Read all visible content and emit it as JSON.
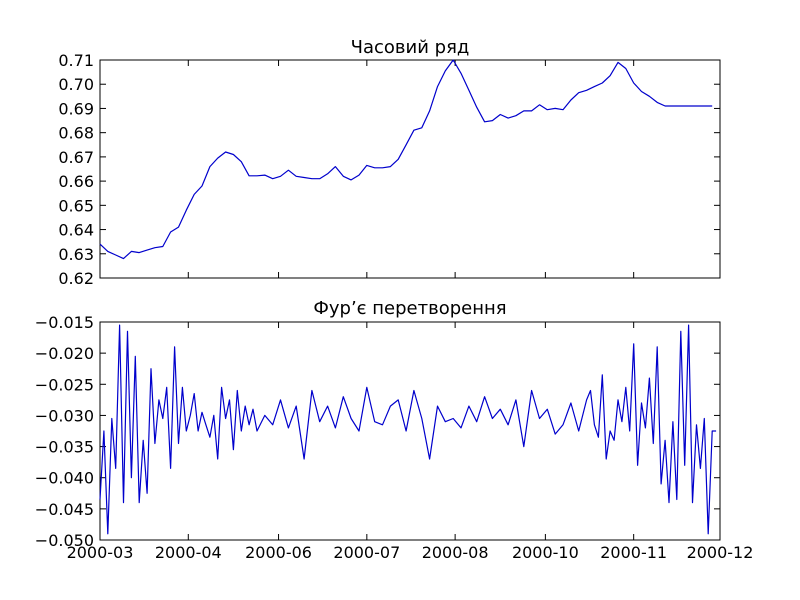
{
  "colors": {
    "series": "#0000cc",
    "axis": "#000000",
    "background": "#ffffff"
  },
  "x_ticks": [
    "2000-03",
    "2000-04",
    "2000-06",
    "2000-07",
    "2000-08",
    "2000-10",
    "2000-11",
    "2000-12"
  ],
  "chart_data": [
    {
      "type": "line",
      "title": "Часовий ряд",
      "xlim": [
        0,
        316
      ],
      "ylim": [
        0.62,
        0.71
      ],
      "y_ticks": [
        "0.62",
        "0.63",
        "0.64",
        "0.65",
        "0.66",
        "0.67",
        "0.68",
        "0.69",
        "0.70",
        "0.71"
      ],
      "grid": false,
      "x_tick_positions": [
        0,
        45,
        91,
        136,
        181,
        227,
        272,
        316
      ],
      "series": [
        {
          "x": [
            0,
            4,
            8,
            12,
            16,
            20,
            24,
            28,
            32,
            36,
            40,
            44,
            48,
            52,
            56,
            60,
            64,
            68,
            72,
            76,
            80,
            84,
            88,
            92,
            96,
            100,
            104,
            108,
            112,
            116,
            120,
            124,
            128,
            132,
            136,
            140,
            144,
            148,
            152,
            156,
            160,
            164,
            168,
            172,
            176,
            180,
            184,
            188,
            192,
            196,
            200,
            204,
            208,
            212,
            216,
            220,
            224,
            228,
            232,
            236,
            240,
            244,
            248,
            252,
            256,
            260,
            264,
            268,
            272,
            276,
            280,
            284,
            288,
            292,
            296,
            300,
            304,
            308,
            312
          ],
          "values": [
            0.634,
            0.631,
            0.6295,
            0.628,
            0.631,
            0.6305,
            0.6315,
            0.6325,
            0.633,
            0.639,
            0.641,
            0.648,
            0.6545,
            0.658,
            0.666,
            0.6695,
            0.672,
            0.671,
            0.668,
            0.6622,
            0.6622,
            0.6625,
            0.661,
            0.662,
            0.6645,
            0.662,
            0.6615,
            0.661,
            0.661,
            0.663,
            0.666,
            0.662,
            0.6605,
            0.6625,
            0.6665,
            0.6655,
            0.6655,
            0.666,
            0.669,
            0.675,
            0.681,
            0.682,
            0.689,
            0.699,
            0.7055,
            0.71,
            0.7045,
            0.6975,
            0.6905,
            0.6845,
            0.685,
            0.6875,
            0.686,
            0.687,
            0.689,
            0.689,
            0.6915,
            0.6895,
            0.69,
            0.6895,
            0.6935,
            0.6965,
            0.6975,
            0.699,
            0.7005,
            0.7035,
            0.709,
            0.7065,
            0.7005,
            0.697,
            0.695,
            0.6925,
            0.691,
            0.691,
            0.691,
            0.691,
            0.691,
            0.691,
            0.691
          ]
        }
      ]
    },
    {
      "type": "line",
      "title": "Фур’є перетворення",
      "xlim": [
        0,
        316
      ],
      "ylim": [
        -0.05,
        -0.015
      ],
      "y_ticks": [
        "−0.050",
        "−0.045",
        "−0.040",
        "−0.035",
        "−0.030",
        "−0.025",
        "−0.020",
        "−0.015"
      ],
      "grid": false,
      "x_tick_positions": [
        0,
        45,
        91,
        136,
        181,
        227,
        272,
        316
      ],
      "series": [
        {
          "x": [
            0,
            2,
            4,
            6,
            8,
            10,
            12,
            14,
            16,
            18,
            20,
            22,
            24,
            26,
            28,
            30,
            32,
            34,
            36,
            38,
            40,
            42,
            44,
            46,
            48,
            50,
            52,
            54,
            56,
            58,
            60,
            62,
            64,
            66,
            68,
            70,
            72,
            74,
            76,
            78,
            80,
            84,
            88,
            92,
            96,
            100,
            104,
            108,
            112,
            116,
            120,
            124,
            128,
            132,
            136,
            140,
            144,
            148,
            152,
            156,
            160,
            164,
            168,
            172,
            176,
            180,
            184,
            188,
            192,
            196,
            200,
            204,
            208,
            212,
            216,
            220,
            224,
            228,
            232,
            236,
            240,
            244,
            248,
            250,
            252,
            254,
            256,
            258,
            260,
            262,
            264,
            266,
            268,
            270,
            272,
            274,
            276,
            278,
            280,
            282,
            284,
            286,
            288,
            290,
            292,
            294,
            296,
            298,
            300,
            302,
            304,
            306,
            308,
            310,
            312,
            314
          ],
          "values": [
            -0.0435,
            -0.0325,
            -0.049,
            -0.0305,
            -0.0385,
            -0.0155,
            -0.044,
            -0.0165,
            -0.04,
            -0.0205,
            -0.044,
            -0.034,
            -0.0425,
            -0.0225,
            -0.0345,
            -0.0275,
            -0.0305,
            -0.0255,
            -0.0385,
            -0.019,
            -0.0345,
            -0.0255,
            -0.0325,
            -0.03,
            -0.0265,
            -0.0325,
            -0.0295,
            -0.0315,
            -0.0335,
            -0.03,
            -0.037,
            -0.0255,
            -0.0305,
            -0.0275,
            -0.0355,
            -0.026,
            -0.0325,
            -0.0285,
            -0.0315,
            -0.029,
            -0.0325,
            -0.03,
            -0.0315,
            -0.0275,
            -0.032,
            -0.0285,
            -0.037,
            -0.026,
            -0.031,
            -0.0285,
            -0.032,
            -0.027,
            -0.0305,
            -0.0325,
            -0.0255,
            -0.031,
            -0.0315,
            -0.0285,
            -0.0275,
            -0.0325,
            -0.026,
            -0.0305,
            -0.037,
            -0.0285,
            -0.031,
            -0.0305,
            -0.032,
            -0.0285,
            -0.031,
            -0.027,
            -0.0305,
            -0.029,
            -0.0315,
            -0.0275,
            -0.035,
            -0.026,
            -0.0305,
            -0.029,
            -0.033,
            -0.0315,
            -0.028,
            -0.0325,
            -0.0275,
            -0.026,
            -0.0315,
            -0.0335,
            -0.0235,
            -0.037,
            -0.0325,
            -0.034,
            -0.0275,
            -0.031,
            -0.0255,
            -0.0325,
            -0.0185,
            -0.038,
            -0.028,
            -0.032,
            -0.024,
            -0.0345,
            -0.019,
            -0.041,
            -0.034,
            -0.044,
            -0.031,
            -0.0435,
            -0.0165,
            -0.038,
            -0.0155,
            -0.044,
            -0.0315,
            -0.0385,
            -0.0305,
            -0.049,
            -0.0325,
            -0.0325
          ]
        }
      ]
    }
  ]
}
